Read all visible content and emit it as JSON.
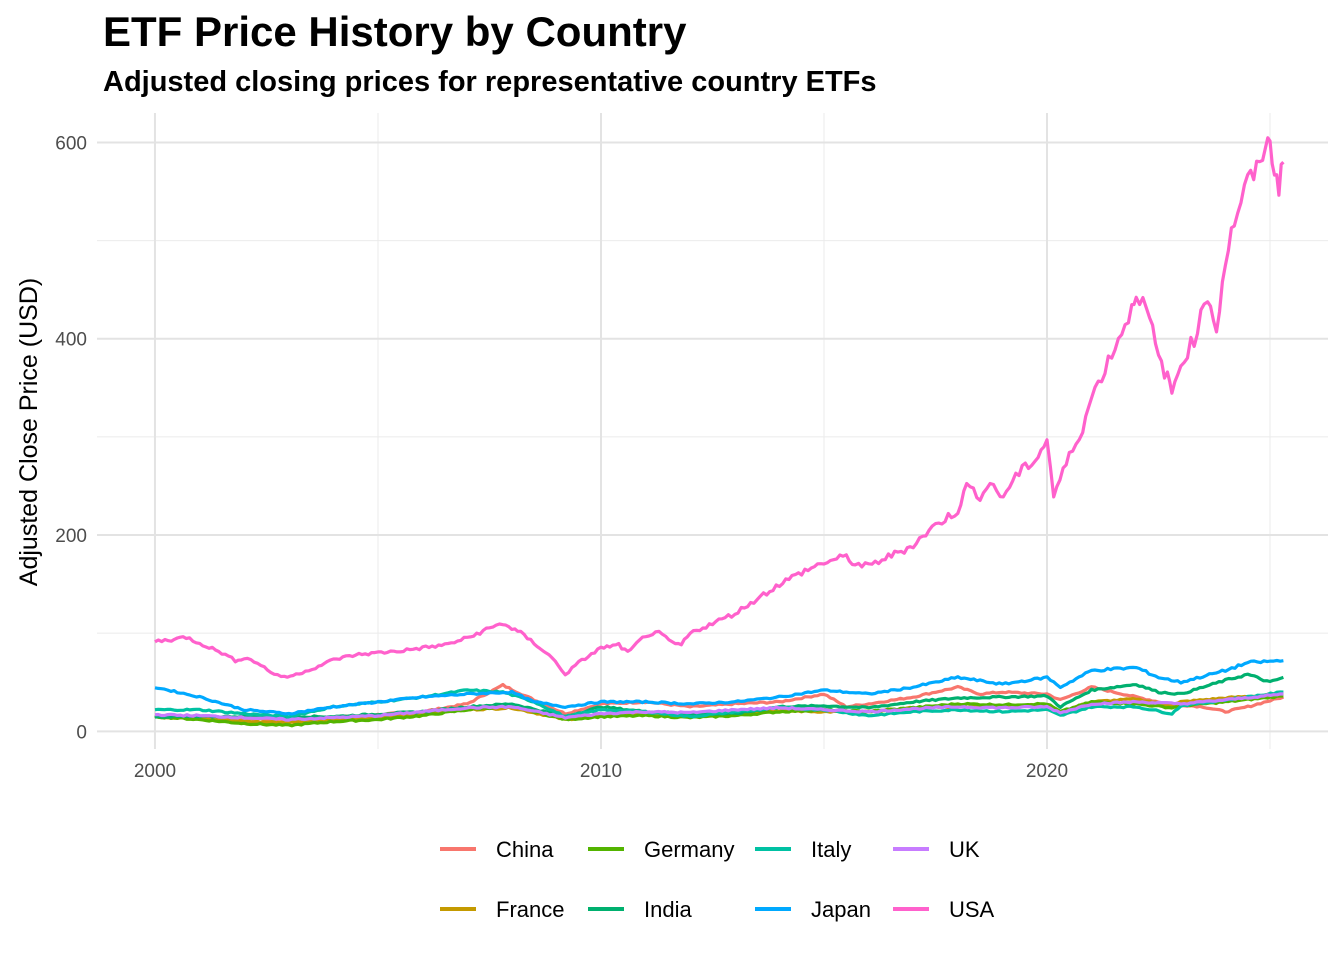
{
  "chart_data": {
    "type": "line",
    "title": "ETF Price History by Country",
    "subtitle": "Adjusted closing prices for representative country ETFs",
    "xlabel": "",
    "ylabel": "Adjusted Close Price (USD)",
    "xlim": [
      1998.7,
      2026.3
    ],
    "ylim": [
      -18,
      630
    ],
    "x_ticks": [
      2000,
      2010,
      2020
    ],
    "y_ticks": [
      0,
      200,
      400,
      600
    ],
    "grid": true,
    "legend_position": "bottom",
    "series": [
      {
        "name": "China",
        "color": "#F8766D",
        "x": [
          2000,
          2001,
          2002,
          2003,
          2004,
          2005,
          2006,
          2007,
          2007.8,
          2008.5,
          2009.2,
          2010,
          2011,
          2012,
          2013,
          2014,
          2015,
          2015.5,
          2016,
          2017,
          2018,
          2018.5,
          2019,
          2020,
          2020.3,
          2021,
          2021.5,
          2022,
          2022.5,
          2023,
          2023.5,
          2024,
          2024.5,
          2025.3
        ],
        "y": [
          15,
          14,
          13,
          12,
          14,
          17,
          20,
          28,
          47,
          32,
          18,
          28,
          30,
          25,
          28,
          30,
          38,
          25,
          28,
          35,
          45,
          38,
          40,
          38,
          32,
          45,
          40,
          35,
          30,
          27,
          25,
          20,
          25,
          35
        ]
      },
      {
        "name": "France",
        "color": "#C49A00",
        "x": [
          2000,
          2001,
          2002,
          2003,
          2004,
          2005,
          2006,
          2007,
          2008,
          2009.2,
          2010,
          2011,
          2012,
          2013,
          2014,
          2015,
          2016,
          2017,
          2018,
          2019,
          2020,
          2020.3,
          2021,
          2022,
          2022.8,
          2023,
          2024,
          2025.3
        ],
        "y": [
          15,
          13,
          10,
          9,
          12,
          14,
          18,
          22,
          24,
          12,
          16,
          18,
          15,
          18,
          21,
          20,
          20,
          24,
          25,
          26,
          27,
          20,
          30,
          33,
          26,
          30,
          34,
          38
        ]
      },
      {
        "name": "Germany",
        "color": "#53B400",
        "x": [
          2000,
          2001,
          2002,
          2003,
          2004,
          2005,
          2006,
          2007,
          2008,
          2009.2,
          2010,
          2011,
          2012,
          2013,
          2014,
          2015,
          2016,
          2017,
          2018,
          2019,
          2020,
          2020.3,
          2021,
          2022,
          2022.8,
          2023,
          2024,
          2025.3
        ],
        "y": [
          15,
          12,
          8,
          6,
          10,
          12,
          16,
          22,
          26,
          12,
          15,
          16,
          14,
          16,
          20,
          22,
          20,
          24,
          28,
          27,
          28,
          20,
          30,
          28,
          24,
          26,
          30,
          36
        ]
      },
      {
        "name": "India",
        "color": "#00B06F",
        "x": [
          2000,
          2004,
          2006,
          2007,
          2008,
          2009.2,
          2010,
          2011,
          2012,
          2013,
          2014,
          2015,
          2016,
          2017,
          2018,
          2019,
          2020,
          2020.3,
          2021,
          2022,
          2022.5,
          2023,
          2024,
          2024.5,
          2025,
          2025.3
        ],
        "y": [
          15,
          15,
          20,
          25,
          28,
          15,
          25,
          20,
          18,
          18,
          25,
          26,
          24,
          30,
          34,
          35,
          36,
          25,
          42,
          48,
          40,
          38,
          52,
          58,
          50,
          55
        ]
      },
      {
        "name": "Italy",
        "color": "#00C1A3",
        "x": [
          2000,
          2001,
          2002,
          2003,
          2004,
          2005,
          2006,
          2007,
          2007.8,
          2008.5,
          2009.2,
          2010,
          2011,
          2012,
          2013,
          2014,
          2015,
          2016,
          2017,
          2018,
          2019,
          2020,
          2020.3,
          2021,
          2022,
          2022.8,
          2023,
          2024,
          2025.3
        ],
        "y": [
          22,
          22,
          18,
          15,
          25,
          30,
          35,
          42,
          40,
          30,
          15,
          22,
          20,
          15,
          20,
          24,
          22,
          16,
          20,
          22,
          20,
          22,
          16,
          25,
          25,
          18,
          26,
          32,
          40
        ]
      },
      {
        "name": "Japan",
        "color": "#00A9FF",
        "x": [
          2000,
          2001,
          2002,
          2003,
          2004,
          2005,
          2006,
          2007,
          2008,
          2008.5,
          2009.2,
          2010,
          2011,
          2012,
          2013,
          2014,
          2015,
          2016,
          2017,
          2018,
          2019,
          2020,
          2020.3,
          2021,
          2022,
          2022.5,
          2023,
          2024,
          2024.5,
          2025.3
        ],
        "y": [
          45,
          35,
          22,
          18,
          25,
          30,
          35,
          38,
          40,
          30,
          25,
          30,
          30,
          28,
          30,
          35,
          42,
          38,
          45,
          55,
          48,
          55,
          45,
          62,
          65,
          55,
          50,
          62,
          70,
          72
        ]
      },
      {
        "name": "UK",
        "color": "#C77CFF",
        "x": [
          2000,
          2001,
          2002,
          2003,
          2004,
          2005,
          2006,
          2007,
          2008,
          2009.2,
          2010,
          2011,
          2012,
          2013,
          2014,
          2015,
          2016,
          2017,
          2018,
          2019,
          2020,
          2020.3,
          2021,
          2022,
          2023,
          2024,
          2025.3
        ],
        "y": [
          17,
          16,
          14,
          12,
          14,
          16,
          20,
          24,
          25,
          14,
          18,
          20,
          19,
          22,
          24,
          22,
          20,
          23,
          25,
          24,
          25,
          19,
          28,
          30,
          28,
          32,
          38
        ]
      },
      {
        "name": "USA",
        "color": "#FF61CC",
        "x": [
          2000,
          2000.3,
          2000.7,
          2001,
          2001.5,
          2001.8,
          2002,
          2002.3,
          2002.6,
          2002.9,
          2003.1,
          2003.3,
          2003.6,
          2004,
          2004.5,
          2005,
          2005.5,
          2006,
          2006.5,
          2007,
          2007.5,
          2007.8,
          2008.2,
          2008.5,
          2008.9,
          2009.2,
          2009.5,
          2010,
          2010.4,
          2010.6,
          2011,
          2011.3,
          2011.6,
          2011.8,
          2012,
          2012.5,
          2013,
          2013.5,
          2014,
          2014.5,
          2015,
          2015.5,
          2015.7,
          2016,
          2016.3,
          2016.8,
          2017,
          2017.5,
          2018,
          2018.2,
          2018.5,
          2018.8,
          2018.95,
          2019.3,
          2019.8,
          2020,
          2020.15,
          2020.5,
          2020.8,
          2021,
          2021.3,
          2021.6,
          2021.9,
          2022,
          2022.3,
          2022.5,
          2022.7,
          2022.8,
          2023,
          2023.3,
          2023.6,
          2023.8,
          2024,
          2024.2,
          2024.5,
          2024.7,
          2024.9,
          2025,
          2025.1,
          2025.2,
          2025.3
        ],
        "y": [
          92,
          93,
          96,
          90,
          80,
          72,
          75,
          70,
          60,
          55,
          57,
          60,
          65,
          73,
          78,
          80,
          82,
          85,
          88,
          95,
          105,
          110,
          100,
          90,
          75,
          58,
          70,
          85,
          88,
          80,
          98,
          100,
          90,
          88,
          100,
          110,
          120,
          135,
          150,
          162,
          172,
          178,
          170,
          168,
          175,
          185,
          190,
          210,
          225,
          250,
          240,
          255,
          235,
          260,
          280,
          298,
          240,
          280,
          310,
          340,
          370,
          400,
          430,
          450,
          420,
          380,
          360,
          345,
          375,
          400,
          445,
          410,
          480,
          520,
          560,
          570,
          600,
          595,
          575,
          555,
          580
        ]
      }
    ]
  }
}
